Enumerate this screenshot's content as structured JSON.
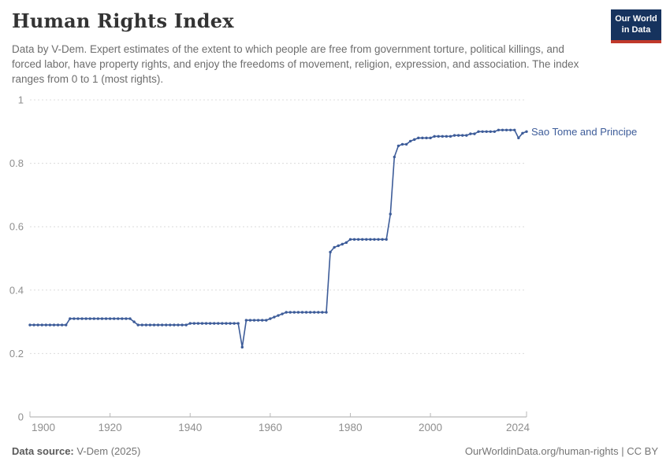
{
  "header": {
    "title": "Human Rights Index",
    "subtitle": "Data by V-Dem. Expert estimates of the extent to which people are free from government torture, political killings, and forced labor, have property rights, and enjoy the freedoms of movement, religion, expression, and association. The index ranges from 0 to 1 (most rights).",
    "logo": {
      "line1": "Our World",
      "line2": "in Data",
      "bg_color": "#16335e",
      "accent_color": "#c0392b"
    }
  },
  "chart_data": {
    "type": "line",
    "title": "Human Rights Index",
    "xlabel": "",
    "ylabel": "",
    "xlim": [
      1900,
      2024
    ],
    "ylim": [
      0,
      1
    ],
    "x_ticks": [
      1900,
      1920,
      1940,
      1960,
      1980,
      2000,
      2024
    ],
    "y_ticks": [
      0,
      0.2,
      0.4,
      0.6,
      0.8,
      1
    ],
    "grid": "horizontal-dashed",
    "legend_position": "end-of-line-label",
    "colors": {
      "grid": "#dcdcdc",
      "axis": "#a8a8a8",
      "tick_text": "#8f8f8f"
    },
    "series": [
      {
        "name": "Sao Tome and Principe",
        "color": "#3d5c99",
        "x_start": 1900,
        "x_step": 1,
        "values": [
          0.29,
          0.29,
          0.29,
          0.29,
          0.29,
          0.29,
          0.29,
          0.29,
          0.29,
          0.29,
          0.31,
          0.31,
          0.31,
          0.31,
          0.31,
          0.31,
          0.31,
          0.31,
          0.31,
          0.31,
          0.31,
          0.31,
          0.31,
          0.31,
          0.31,
          0.31,
          0.3,
          0.29,
          0.29,
          0.29,
          0.29,
          0.29,
          0.29,
          0.29,
          0.29,
          0.29,
          0.29,
          0.29,
          0.29,
          0.29,
          0.295,
          0.295,
          0.295,
          0.295,
          0.295,
          0.295,
          0.295,
          0.295,
          0.295,
          0.295,
          0.295,
          0.295,
          0.295,
          0.22,
          0.305,
          0.305,
          0.305,
          0.305,
          0.305,
          0.305,
          0.31,
          0.315,
          0.32,
          0.325,
          0.33,
          0.33,
          0.33,
          0.33,
          0.33,
          0.33,
          0.33,
          0.33,
          0.33,
          0.33,
          0.33,
          0.52,
          0.535,
          0.54,
          0.545,
          0.55,
          0.56,
          0.56,
          0.56,
          0.56,
          0.56,
          0.56,
          0.56,
          0.56,
          0.56,
          0.56,
          0.64,
          0.82,
          0.855,
          0.86,
          0.86,
          0.87,
          0.875,
          0.88,
          0.88,
          0.88,
          0.88,
          0.885,
          0.885,
          0.885,
          0.885,
          0.885,
          0.888,
          0.888,
          0.888,
          0.888,
          0.893,
          0.893,
          0.9,
          0.9,
          0.9,
          0.9,
          0.9,
          0.905,
          0.905,
          0.905,
          0.905,
          0.905,
          0.88,
          0.895,
          0.9
        ]
      }
    ]
  },
  "footer": {
    "source_label": "Data source:",
    "source_value": " V-Dem (2025)",
    "attribution": "OurWorldinData.org/human-rights | CC BY"
  }
}
